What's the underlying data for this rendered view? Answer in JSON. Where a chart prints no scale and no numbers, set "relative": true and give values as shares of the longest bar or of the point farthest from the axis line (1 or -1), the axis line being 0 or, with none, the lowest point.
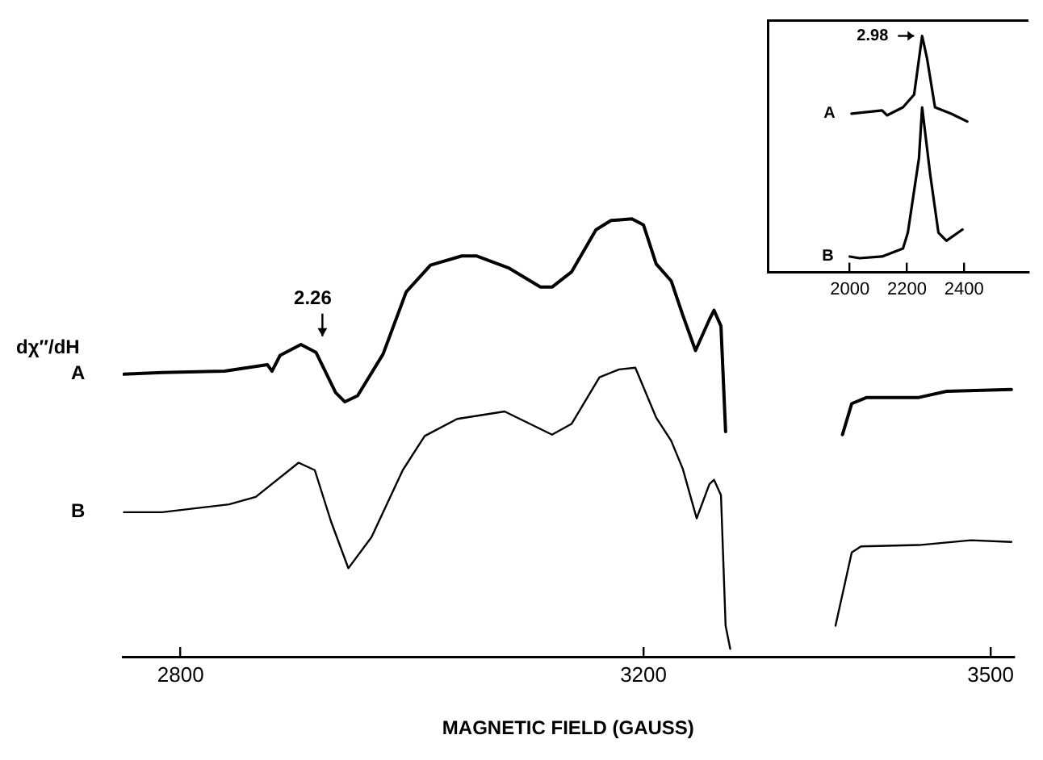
{
  "chart_data": [
    {
      "type": "line",
      "relative": true,
      "xlabel": "MAGNETIC FIELD (GAUSS)",
      "ylabel": "dχ″/dH",
      "xlim": [
        2750,
        3520
      ],
      "xticks": [
        2800,
        3200,
        3500
      ],
      "tick_labels": "x",
      "grid": false,
      "legend": false,
      "marker": "none",
      "annotations": [
        {
          "text": "2.26",
          "x": 2917,
          "y": 0.695
        }
      ],
      "series": [
        {
          "name": "A",
          "color": "#000000",
          "x": [
            2751,
            2784,
            2838,
            2875,
            2879,
            2886,
            2904,
            2917,
            2934,
            2942,
            2953,
            2975,
            2995,
            3016,
            3043,
            3056,
            3084,
            3111,
            3121,
            3138,
            3159,
            3172,
            3190,
            3200,
            3211,
            3224,
            3234,
            3245,
            3257,
            3261,
            3267,
            3271,
            3320,
            3372,
            3380,
            3393,
            3438,
            3462,
            3518
          ],
          "values": [
            0.645,
            0.649,
            0.652,
            0.667,
            0.652,
            0.688,
            0.713,
            0.695,
            0.603,
            0.582,
            0.596,
            0.691,
            0.833,
            0.894,
            0.915,
            0.915,
            0.887,
            0.844,
            0.844,
            0.879,
            0.975,
            0.996,
            1.0,
            0.986,
            0.897,
            0.858,
            0.78,
            0.699,
            0.77,
            0.791,
            0.755,
            0.514,
            null,
            0.507,
            0.578,
            0.592,
            0.592,
            0.606,
            0.61
          ]
        },
        {
          "name": "B",
          "color": "#000000",
          "x": [
            2751,
            2784,
            2842,
            2865,
            2902,
            2916,
            2930,
            2945,
            2965,
            2992,
            3011,
            3039,
            3080,
            3121,
            3138,
            3162,
            3179,
            3193,
            3211,
            3224,
            3234,
            3246,
            3257,
            3261,
            3267,
            3271,
            3275,
            3320,
            3366,
            3380,
            3388,
            3438,
            3483,
            3518
          ],
          "values": [
            0.33,
            0.33,
            0.348,
            0.365,
            0.443,
            0.426,
            0.309,
            0.202,
            0.273,
            0.426,
            0.504,
            0.543,
            0.56,
            0.507,
            0.532,
            0.638,
            0.656,
            0.66,
            0.546,
            0.493,
            0.429,
            0.316,
            0.394,
            0.404,
            0.369,
            0.071,
            0.018,
            null,
            0.071,
            0.238,
            0.252,
            0.255,
            0.266,
            0.262
          ]
        }
      ]
    },
    {
      "type": "line",
      "relative": true,
      "xlim": [
        1710,
        2625
      ],
      "xticks": [
        2000,
        2200,
        2400
      ],
      "tick_labels": "x",
      "grid": false,
      "legend": false,
      "marker": "none",
      "annotations": [
        {
          "text": "2.98",
          "x": 2253,
          "y": 1.0
        }
      ],
      "series": [
        {
          "name": "A",
          "color": "#000000",
          "x": [
            2006,
            2113,
            2130,
            2186,
            2225,
            2253,
            2270,
            2298,
            2355,
            2411
          ],
          "values": [
            0.671,
            0.685,
            0.664,
            0.698,
            0.752,
            1.0,
            0.906,
            0.698,
            0.671,
            0.638
          ]
        },
        {
          "name": "B",
          "color": "#000000",
          "x": [
            2000,
            2034,
            2113,
            2186,
            2203,
            2242,
            2253,
            2281,
            2310,
            2338,
            2394
          ],
          "values": [
            0.067,
            0.06,
            0.067,
            0.101,
            0.168,
            0.483,
            0.698,
            0.416,
            0.168,
            0.134,
            0.181
          ]
        }
      ]
    }
  ]
}
